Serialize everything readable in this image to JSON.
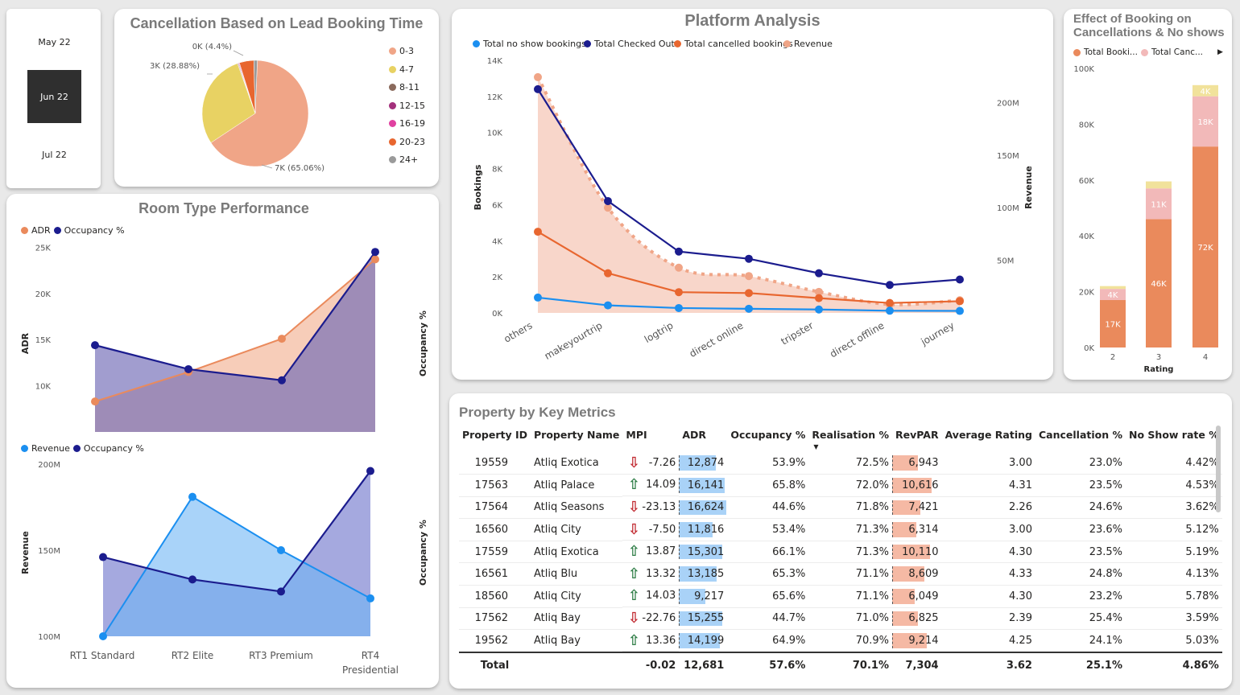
{
  "slicer": {
    "items": [
      "May 22",
      "Jun 22",
      "Jul 22"
    ],
    "selected": 1
  },
  "colors": {
    "salmon": "#f0a587",
    "yellow": "#e8d263",
    "brown": "#8a6a5c",
    "magenta": "#a3307c",
    "pink": "#e041a0",
    "orange": "#e8662f",
    "grey": "#9a9a9a",
    "navy": "#1b1c8e",
    "blue": "#1b8ff0",
    "light_pink": "#f2b9b9",
    "pale_yellow": "#f1e29b",
    "bar_orange": "#ea8a5c"
  },
  "pie": {
    "title": "Cancellation Based on Lead Booking Time",
    "chart_data": {
      "type": "pie",
      "title": "Cancellation Based on Lead Booking Time",
      "slices": [
        {
          "name": "0-3",
          "value": 65.06,
          "label": "7K (65.06%)"
        },
        {
          "name": "4-7",
          "value": 28.88,
          "label": "3K (28.88%)"
        },
        {
          "name": "8-11",
          "value": 0.2,
          "label": ""
        },
        {
          "name": "12-15",
          "value": 0.2,
          "label": ""
        },
        {
          "name": "16-19",
          "value": 0.2,
          "label": ""
        },
        {
          "name": "20-23",
          "value": 4.4,
          "label": "0K (4.4%)"
        },
        {
          "name": "24+",
          "value": 1.06,
          "label": ""
        }
      ],
      "legend": [
        "0-3",
        "4-7",
        "8-11",
        "12-15",
        "16-19",
        "20-23",
        "24+"
      ]
    }
  },
  "platform": {
    "title": "Platform Analysis",
    "chart_data": {
      "type": "line",
      "title": "Platform Analysis",
      "categories": [
        "others",
        "makeyourtrip",
        "logtrip",
        "direct online",
        "tripster",
        "direct offline",
        "journey"
      ],
      "ylabel": "Bookings",
      "y2label": "Revenue",
      "ylim": [
        0,
        14000
      ],
      "y2lim": [
        0,
        240000000
      ],
      "yticks": [
        "0K",
        "2K",
        "4K",
        "6K",
        "8K",
        "10K",
        "12K",
        "14K"
      ],
      "y2ticks": [
        "50M",
        "100M",
        "150M",
        "200M"
      ],
      "series": [
        {
          "name": "Total no show bookings",
          "values": [
            850,
            420,
            270,
            230,
            190,
            120,
            110
          ]
        },
        {
          "name": "Total Checked Out",
          "values": [
            12400,
            6200,
            3400,
            3000,
            2200,
            1550,
            1850
          ]
        },
        {
          "name": "Total cancelled bookings",
          "values": [
            4500,
            2200,
            1150,
            1100,
            820,
            550,
            650
          ]
        },
        {
          "name": "Revenue",
          "axis": "secondary",
          "values": [
            224000000,
            100000000,
            43000000,
            35000000,
            20000000,
            8000000,
            12000000
          ]
        }
      ]
    }
  },
  "effect": {
    "title_line1": "Effect of Booking on",
    "title_line2": "Cancellations & No shows",
    "legend": [
      "Total Booki...",
      "Total Canc..."
    ],
    "chart_data": {
      "type": "bar",
      "stacked": true,
      "xlabel": "Rating",
      "categories": [
        "2",
        "3",
        "4"
      ],
      "ylim": [
        0,
        100000
      ],
      "yticks": [
        "0K",
        "20K",
        "40K",
        "60K",
        "80K",
        "100K"
      ],
      "series": [
        {
          "name": "Total Booki...",
          "values": [
            17000,
            46000,
            72000
          ],
          "labels": [
            "17K",
            "46K",
            "72K"
          ]
        },
        {
          "name": "Total Canc...",
          "values": [
            4000,
            11000,
            18000
          ],
          "labels": [
            "4K",
            "11K",
            "18K"
          ]
        },
        {
          "name": "",
          "values": [
            1000,
            2500,
            4000
          ],
          "labels": [
            "",
            "",
            "4K"
          ]
        }
      ]
    }
  },
  "room": {
    "title": "Room Type Performance",
    "categories": [
      "RT1 Standard",
      "RT2 Elite",
      "RT3 Premium",
      "RT4",
      "Presidential"
    ],
    "top": {
      "chart_data": {
        "type": "area",
        "categories": [
          "RT1 Standard",
          "RT2 Elite",
          "RT3 Premium",
          "RT4 Presidential"
        ],
        "ylabel": "ADR",
        "y2label": "Occupancy %",
        "ylim": [
          5000,
          26000
        ],
        "yticks": [
          "10K",
          "15K",
          "20K",
          "25K"
        ],
        "series": [
          {
            "name": "ADR",
            "values": [
              8300,
              11500,
              15100,
              23700
            ]
          },
          {
            "name": "Occupancy %",
            "axis": "secondary",
            "values": [
              14400,
              11800,
              10600,
              24500
            ]
          }
        ]
      }
    },
    "bottom": {
      "chart_data": {
        "type": "area",
        "categories": [
          "RT1 Standard",
          "RT2 Elite",
          "RT3 Premium",
          "RT4 Presidential"
        ],
        "ylabel": "Revenue",
        "y2label": "Occupancy %",
        "ylim": [
          100000000,
          200000000
        ],
        "yticks": [
          "100M",
          "150M",
          "200M"
        ],
        "series": [
          {
            "name": "Revenue",
            "values": [
              100000000,
              181000000,
              150000000,
              122000000
            ]
          },
          {
            "name": "Occupancy %",
            "axis": "secondary",
            "values": [
              146000000,
              133000000,
              126000000,
              196000000
            ]
          }
        ]
      }
    }
  },
  "metrics": {
    "title": "Property by Key Metrics",
    "columns": [
      "Property ID",
      "Property Name",
      "MPI",
      "ADR",
      "Occupancy %",
      "Realisation %",
      "RevPAR",
      "Average Rating",
      "Cancellation %",
      "No Show rate %"
    ],
    "rows": [
      {
        "id": "19559",
        "name": "Atliq Exotica",
        "trend": "down",
        "mpi": "-7.26",
        "adr": "12,874",
        "adr_v": 12874,
        "occ": "53.9%",
        "real": "72.5%",
        "revpar": "6,943",
        "revpar_v": 6943,
        "rating": "3.00",
        "cancel": "23.0%",
        "noshow": "4.42%"
      },
      {
        "id": "17563",
        "name": "Atliq Palace",
        "trend": "up",
        "mpi": "14.09",
        "adr": "16,141",
        "adr_v": 16141,
        "occ": "65.8%",
        "real": "72.0%",
        "revpar": "10,616",
        "revpar_v": 10616,
        "rating": "4.31",
        "cancel": "23.5%",
        "noshow": "4.53%"
      },
      {
        "id": "17564",
        "name": "Atliq Seasons",
        "trend": "down",
        "mpi": "-23.13",
        "adr": "16,624",
        "adr_v": 16624,
        "occ": "44.6%",
        "real": "71.8%",
        "revpar": "7,421",
        "revpar_v": 7421,
        "rating": "2.26",
        "cancel": "24.6%",
        "noshow": "3.62%"
      },
      {
        "id": "16560",
        "name": "Atliq City",
        "trend": "down",
        "mpi": "-7.50",
        "adr": "11,816",
        "adr_v": 11816,
        "occ": "53.4%",
        "real": "71.3%",
        "revpar": "6,314",
        "revpar_v": 6314,
        "rating": "3.00",
        "cancel": "23.6%",
        "noshow": "5.12%"
      },
      {
        "id": "17559",
        "name": "Atliq Exotica",
        "trend": "up",
        "mpi": "13.87",
        "adr": "15,301",
        "adr_v": 15301,
        "occ": "66.1%",
        "real": "71.3%",
        "revpar": "10,110",
        "revpar_v": 10110,
        "rating": "4.30",
        "cancel": "23.5%",
        "noshow": "5.19%"
      },
      {
        "id": "16561",
        "name": "Atliq Blu",
        "trend": "up",
        "mpi": "13.32",
        "adr": "13,185",
        "adr_v": 13185,
        "occ": "65.3%",
        "real": "71.1%",
        "revpar": "8,609",
        "revpar_v": 8609,
        "rating": "4.33",
        "cancel": "24.8%",
        "noshow": "4.13%"
      },
      {
        "id": "18560",
        "name": "Atliq City",
        "trend": "up",
        "mpi": "14.03",
        "adr": "9,217",
        "adr_v": 9217,
        "occ": "65.6%",
        "real": "71.1%",
        "revpar": "6,049",
        "revpar_v": 6049,
        "rating": "4.30",
        "cancel": "23.2%",
        "noshow": "5.78%"
      },
      {
        "id": "17562",
        "name": "Atliq Bay",
        "trend": "down",
        "mpi": "-22.76",
        "adr": "15,255",
        "adr_v": 15255,
        "occ": "44.7%",
        "real": "71.0%",
        "revpar": "6,825",
        "revpar_v": 6825,
        "rating": "2.39",
        "cancel": "25.4%",
        "noshow": "3.59%"
      },
      {
        "id": "19562",
        "name": "Atliq Bay",
        "trend": "up",
        "mpi": "13.36",
        "adr": "14,199",
        "adr_v": 14199,
        "occ": "64.9%",
        "real": "70.9%",
        "revpar": "9,214",
        "revpar_v": 9214,
        "rating": "4.25",
        "cancel": "24.1%",
        "noshow": "5.03%"
      }
    ],
    "total": {
      "label": "Total",
      "mpi": "-0.02",
      "adr": "12,681",
      "occ": "57.6%",
      "real": "70.1%",
      "revpar": "7,304",
      "rating": "3.62",
      "cancel": "25.1%",
      "noshow": "4.86%"
    }
  }
}
